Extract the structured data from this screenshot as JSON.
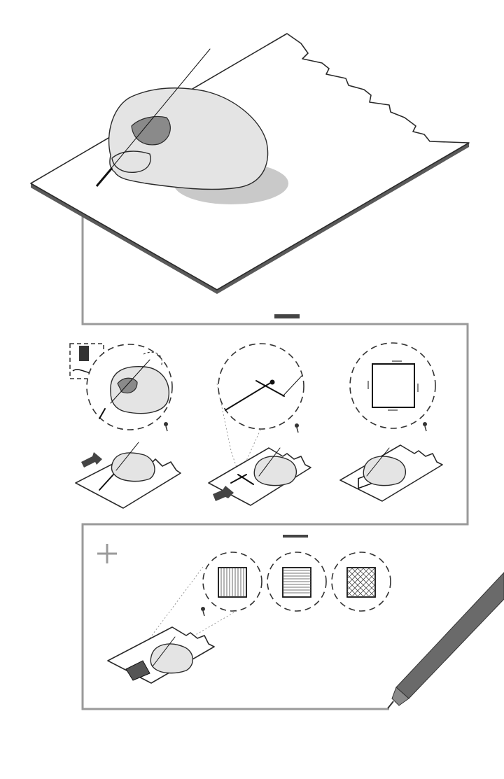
{
  "illustration": {
    "panels": [
      {
        "id": "intro",
        "caption": ""
      },
      {
        "id": "steps",
        "steps": [
          "line-stroke",
          "line-join",
          "square"
        ]
      },
      {
        "id": "fill",
        "fill_patterns": [
          "vertical-hatch",
          "horizontal-hatch",
          "cross-hatch"
        ]
      }
    ],
    "icons": [
      "plus-icon",
      "pin-icon",
      "pen-icon",
      "hand-icon"
    ],
    "colors": {
      "frame": "#9a9a9a",
      "ink": "#111111",
      "skin": "#e4e4e4",
      "pen_large": "#6a6a6a"
    }
  }
}
